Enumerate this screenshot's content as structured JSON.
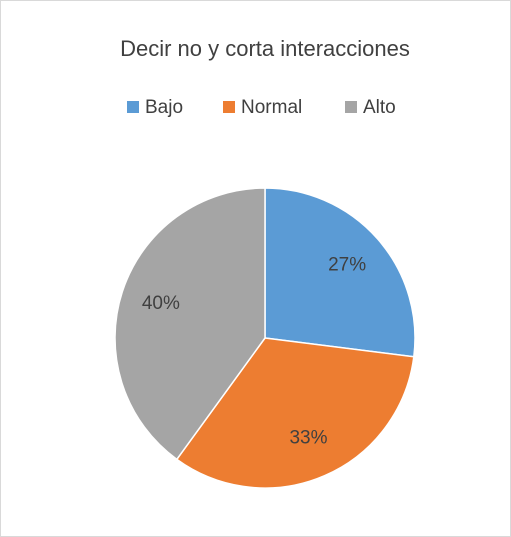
{
  "chart_data": {
    "type": "pie",
    "title": "Decir no y corta interacciones",
    "categories": [
      "Bajo",
      "Normal",
      "Alto"
    ],
    "values": [
      27,
      33,
      40
    ],
    "value_labels": [
      "27%",
      "33%",
      "40%"
    ],
    "colors": [
      "#5b9bd5",
      "#ed7d31",
      "#a5a5a5"
    ],
    "legend": "top"
  }
}
